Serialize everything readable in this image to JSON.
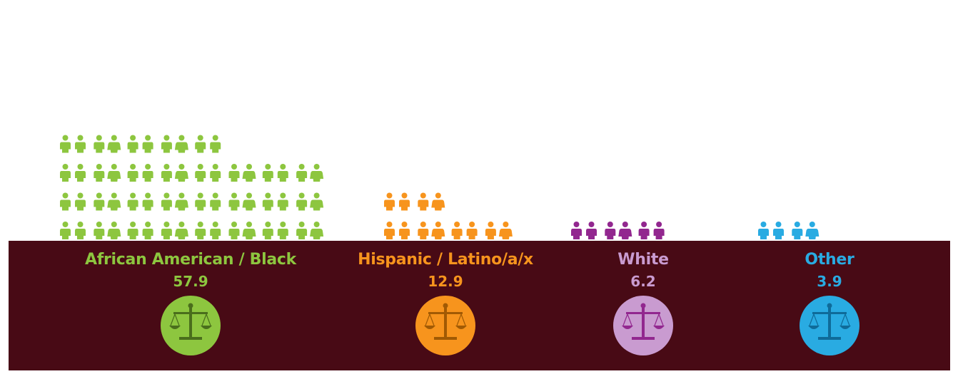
{
  "chart_data": {
    "type": "pictograph",
    "categories": [
      "African American / Black",
      "Hispanic / Latino/a/x",
      "White",
      "Other"
    ],
    "values": [
      "57.9",
      "12.9",
      "6.2",
      "3.9"
    ],
    "colors": [
      "#8dc63f",
      "#f7941d",
      "#92278f",
      "#29abe2"
    ],
    "label_colors": [
      "#8dc63f",
      "#f7941d",
      "#c99bd0",
      "#29abe2"
    ],
    "badge_colors": [
      "#8dc63f",
      "#f7941d",
      "#c99bd0",
      "#29abe2"
    ],
    "scale_colors": [
      "#4a6e1c",
      "#a15a04",
      "#92278f",
      "#0f6b99"
    ],
    "icon_name": "person-pair-icon",
    "badge_icon": "balance-scale-icon",
    "band_color": "#480a15"
  },
  "groups": [
    {
      "label": "African American / Black",
      "value": "57.9"
    },
    {
      "label": "Hispanic / Latino/a/x",
      "value": "12.9"
    },
    {
      "label": "White",
      "value": "6.2"
    },
    {
      "label": "Other",
      "value": "3.9"
    }
  ]
}
